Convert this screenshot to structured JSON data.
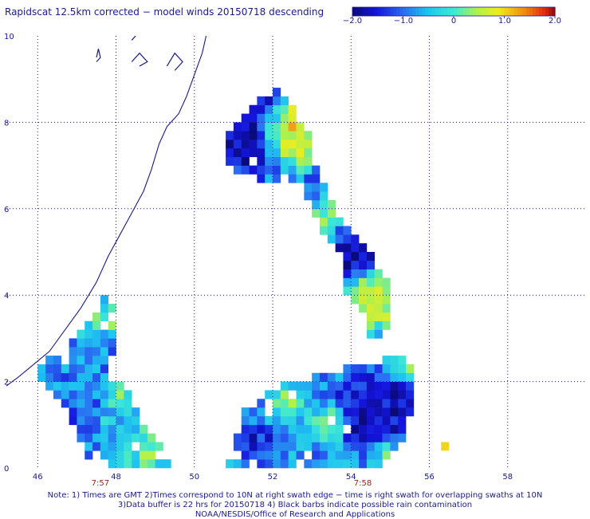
{
  "title": "Rapidscat 12.5km corrected − model winds 20150718 descending",
  "colorbar": {
    "ticks": [
      "−2.0",
      "−1.0",
      "0",
      "1.0",
      "2.0"
    ],
    "min": -2.0,
    "max": 2.0
  },
  "axes": {
    "x_ticks": [
      "46",
      "48",
      "50",
      "52",
      "54",
      "56",
      "58"
    ],
    "y_ticks": [
      "0",
      "2",
      "4",
      "6",
      "8",
      "10"
    ],
    "x_range": [
      45.2,
      60.0
    ],
    "y_range": [
      0,
      10
    ]
  },
  "time_labels": [
    "7:57",
    "7:58"
  ],
  "footnotes": [
    "Note: 1) Times are GMT 2)Times correspond to 10N at right swath edge − time is right swath for overlapping swaths at 10N",
    "3)Data buffer is 22 hrs for 20150718 4) Black barbs indicate possible rain contamination",
    "NOAA/NESDIS/Office of Research and Applications"
  ],
  "colors": {
    "text": "#1a1a8c",
    "grid": "#1a1a8c",
    "coast": "#1a1a8c",
    "time_label": "#8b2a1a"
  },
  "chart_data": {
    "type": "heatmap",
    "title": "Rapidscat 12.5km corrected − model winds 20150718 descending",
    "value_range": [
      -2.0,
      2.0
    ],
    "grid_step_deg": 0.2,
    "swaths": [
      {
        "polygon": [
          [
            46.0,
            2.0
          ],
          [
            46.4,
            1.8
          ],
          [
            46.9,
            1.0
          ],
          [
            47.3,
            0.2
          ],
          [
            47.55,
            0.4
          ],
          [
            47.7,
            1.6
          ],
          [
            47.9,
            2.5
          ],
          [
            48.0,
            3.8
          ],
          [
            47.7,
            4.0
          ],
          [
            47.2,
            3.2
          ],
          [
            46.7,
            2.8
          ],
          [
            46.2,
            2.5
          ],
          [
            46.05,
            2.3
          ]
        ],
        "mean": -0.9,
        "features": [
          {
            "x": 47.8,
            "y": 3.5,
            "v": 0.4,
            "r": 0.35
          },
          {
            "x": 47.35,
            "y": 3.0,
            "v": -0.4,
            "r": 0.3
          },
          {
            "x": 46.7,
            "y": 1.2,
            "v": -1.6,
            "r": 0.3
          }
        ]
      },
      {
        "polygon": [
          [
            47.55,
            0.4
          ],
          [
            48.0,
            0.0
          ],
          [
            49.4,
            0.0
          ],
          [
            49.2,
            0.4
          ],
          [
            48.9,
            0.8
          ],
          [
            48.5,
            1.4
          ],
          [
            48.2,
            1.9
          ],
          [
            47.9,
            2.0
          ],
          [
            47.7,
            1.6
          ]
        ],
        "mean": -0.5,
        "features": [
          {
            "x": 48.8,
            "y": 0.4,
            "v": 0.3,
            "r": 0.35
          },
          {
            "x": 48.1,
            "y": 1.8,
            "v": 0.2,
            "r": 0.3
          }
        ]
      },
      {
        "polygon": [
          [
            50.8,
            7.4
          ],
          [
            51.0,
            8.0
          ],
          [
            51.3,
            8.1
          ],
          [
            51.5,
            8.4
          ],
          [
            51.9,
            8.6
          ],
          [
            52.1,
            8.8
          ],
          [
            52.3,
            8.6
          ],
          [
            52.6,
            8.2
          ],
          [
            52.9,
            7.8
          ],
          [
            53.1,
            7.0
          ],
          [
            53.3,
            6.6
          ],
          [
            53.5,
            6.2
          ],
          [
            53.9,
            5.6
          ],
          [
            54.3,
            5.2
          ],
          [
            54.5,
            5.0
          ],
          [
            54.6,
            4.6
          ],
          [
            55.0,
            4.4
          ],
          [
            55.1,
            4.0
          ],
          [
            55.0,
            3.5
          ],
          [
            54.8,
            3.0
          ],
          [
            54.5,
            3.0
          ],
          [
            54.3,
            3.4
          ],
          [
            53.8,
            4.0
          ],
          [
            53.8,
            4.8
          ],
          [
            53.3,
            5.4
          ],
          [
            53.0,
            6.0
          ],
          [
            52.8,
            6.5
          ],
          [
            52.3,
            6.6
          ],
          [
            51.7,
            6.7
          ],
          [
            51.2,
            6.8
          ],
          [
            50.8,
            7.0
          ]
        ],
        "mean": -0.9,
        "features": [
          {
            "x": 51.2,
            "y": 7.6,
            "v": -2.0,
            "r": 0.6
          },
          {
            "x": 51.8,
            "y": 8.3,
            "v": -1.8,
            "r": 0.35
          },
          {
            "x": 52.3,
            "y": 7.9,
            "v": 1.4,
            "r": 0.45
          },
          {
            "x": 52.6,
            "y": 7.4,
            "v": 0.8,
            "r": 0.35
          },
          {
            "x": 53.4,
            "y": 5.9,
            "v": 0.6,
            "r": 0.25
          },
          {
            "x": 53.3,
            "y": 5.3,
            "v": 0.5,
            "r": 0.25
          },
          {
            "x": 54.0,
            "y": 4.9,
            "v": -2.0,
            "r": 0.45
          },
          {
            "x": 54.6,
            "y": 3.9,
            "v": 1.2,
            "r": 0.5
          },
          {
            "x": 54.9,
            "y": 4.1,
            "v": 0.6,
            "r": 0.3
          }
        ]
      },
      {
        "polygon": [
          [
            50.8,
            0.0
          ],
          [
            51.3,
            1.3
          ],
          [
            51.9,
            1.7
          ],
          [
            52.4,
            2.0
          ],
          [
            53.5,
            2.2
          ],
          [
            54.3,
            2.4
          ],
          [
            55.3,
            2.6
          ],
          [
            55.5,
            2.4
          ],
          [
            55.7,
            1.8
          ],
          [
            55.5,
            1.2
          ],
          [
            55.3,
            0.6
          ],
          [
            55.0,
            0.2
          ],
          [
            54.6,
            0.0
          ]
        ],
        "mean": -0.8,
        "features": [
          {
            "x": 54.5,
            "y": 1.3,
            "v": -2.0,
            "r": 0.65
          },
          {
            "x": 55.2,
            "y": 1.6,
            "v": -1.7,
            "r": 0.4
          },
          {
            "x": 52.4,
            "y": 1.5,
            "v": 0.3,
            "r": 0.35
          },
          {
            "x": 53.4,
            "y": 1.0,
            "v": 0.4,
            "r": 0.35
          },
          {
            "x": 55.4,
            "y": 2.3,
            "v": 0.4,
            "r": 0.3
          },
          {
            "x": 51.6,
            "y": 0.5,
            "v": -1.6,
            "r": 0.35
          },
          {
            "x": 54.8,
            "y": 0.3,
            "v": 0.2,
            "r": 0.3
          }
        ]
      }
    ],
    "isolated_cells": [
      {
        "x": 56.4,
        "y": 0.5,
        "v": 1.0
      }
    ],
    "coastline": [
      [
        45.2,
        1.9
      ],
      [
        45.5,
        2.1
      ],
      [
        45.9,
        2.4
      ],
      [
        46.3,
        2.7
      ],
      [
        46.7,
        3.2
      ],
      [
        47.1,
        3.7
      ],
      [
        47.5,
        4.3
      ],
      [
        47.8,
        4.9
      ],
      [
        48.1,
        5.4
      ],
      [
        48.4,
        5.9
      ],
      [
        48.7,
        6.4
      ],
      [
        48.9,
        6.9
      ],
      [
        49.1,
        7.5
      ],
      [
        49.3,
        7.9
      ],
      [
        49.6,
        8.2
      ],
      [
        49.8,
        8.6
      ],
      [
        50.0,
        9.1
      ],
      [
        50.2,
        9.6
      ],
      [
        50.3,
        10.0
      ]
    ],
    "islands": [
      [
        [
          47.5,
          9.4
        ],
        [
          47.6,
          9.5
        ],
        [
          47.55,
          9.7
        ],
        [
          47.5,
          9.5
        ]
      ],
      [
        [
          48.4,
          9.4
        ],
        [
          48.6,
          9.6
        ],
        [
          48.8,
          9.4
        ],
        [
          48.6,
          9.3
        ]
      ],
      [
        [
          49.3,
          9.3
        ],
        [
          49.5,
          9.6
        ],
        [
          49.7,
          9.4
        ],
        [
          49.5,
          9.2
        ]
      ],
      [
        [
          48.4,
          9.9
        ],
        [
          48.5,
          10.0
        ]
      ]
    ]
  }
}
